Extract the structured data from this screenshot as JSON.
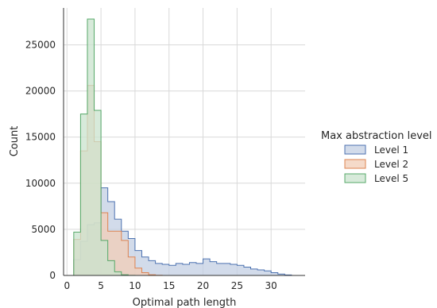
{
  "chart_data": {
    "type": "histogram",
    "xlabel": "Optimal path length",
    "ylabel": "Count",
    "xlim": [
      -0.5,
      35
    ],
    "ylim": [
      0,
      29000
    ],
    "xticks": [
      0,
      5,
      10,
      15,
      20,
      25,
      30
    ],
    "yticks": [
      0,
      5000,
      10000,
      15000,
      20000,
      25000
    ],
    "grid": true,
    "legend": {
      "title": "Max abstraction level",
      "placement": "right"
    },
    "bin_edges": [
      1,
      2,
      3,
      4,
      5,
      6,
      7,
      8,
      9,
      10,
      11,
      12,
      13,
      14,
      15,
      16,
      17,
      18,
      19,
      20,
      21,
      22,
      23,
      24,
      25,
      26,
      27,
      28,
      29,
      30,
      31,
      32,
      33
    ],
    "series": [
      {
        "name": "Level 1",
        "fill": "#c3cfe3",
        "stroke": "#4c72b0",
        "counts": [
          1700,
          3700,
          5500,
          5700,
          9500,
          8000,
          6100,
          4800,
          4000,
          2700,
          2000,
          1600,
          1300,
          1200,
          1100,
          1300,
          1200,
          1400,
          1300,
          1800,
          1500,
          1300,
          1300,
          1200,
          1100,
          900,
          700,
          600,
          500,
          300,
          150,
          50
        ]
      },
      {
        "name": "Level 2",
        "fill": "#f2cdb7",
        "stroke": "#dd8452",
        "counts": [
          3900,
          13500,
          20600,
          14500,
          6800,
          4800,
          4800,
          3800,
          2000,
          800,
          300,
          80,
          20,
          0,
          0,
          0,
          0,
          0,
          0,
          0,
          0,
          0,
          0,
          0,
          0,
          0,
          0,
          0,
          0,
          0,
          0,
          0
        ]
      },
      {
        "name": "Level 5",
        "fill": "#c9e3cd",
        "stroke": "#55a868",
        "counts": [
          4700,
          17500,
          27800,
          17900,
          3800,
          1600,
          400,
          80,
          10,
          0,
          0,
          0,
          0,
          0,
          0,
          0,
          0,
          0,
          0,
          0,
          0,
          0,
          0,
          0,
          0,
          0,
          0,
          0,
          0,
          0,
          0,
          0
        ]
      }
    ]
  }
}
